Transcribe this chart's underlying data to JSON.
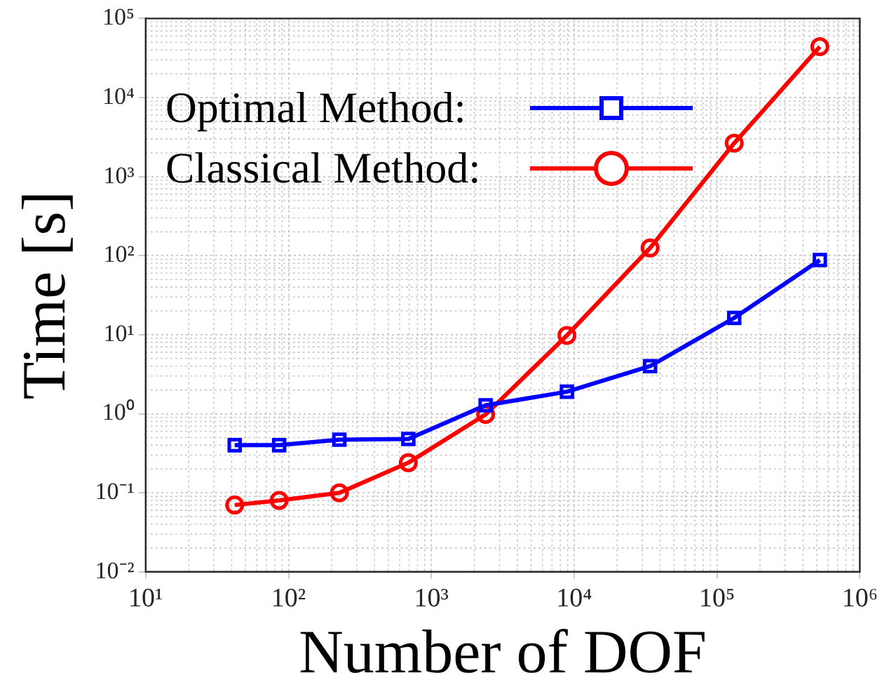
{
  "chart_data": {
    "type": "line",
    "xlabel": "Number of DOF",
    "ylabel": "Time [s]",
    "log": "xy",
    "grid": true,
    "legend": "top left",
    "line_style": "solid",
    "x": [
      42,
      86,
      227,
      690,
      2400,
      8900,
      34000,
      132000,
      525000
    ],
    "xlim": [
      10,
      1000000
    ],
    "ylim": [
      0.01,
      100000
    ],
    "xticks": [
      {
        "value": 10,
        "label": "10¹"
      },
      {
        "value": 100,
        "label": "10²"
      },
      {
        "value": 1000,
        "label": "10³"
      },
      {
        "value": 10000,
        "label": "10⁴"
      },
      {
        "value": 100000,
        "label": "10⁵"
      },
      {
        "value": 1000000,
        "label": "10⁶"
      }
    ],
    "yticks": [
      {
        "value": 0.01,
        "label": "10⁻²"
      },
      {
        "value": 0.1,
        "label": "10⁻¹"
      },
      {
        "value": 1,
        "label": "10⁰"
      },
      {
        "value": 10,
        "label": "10¹"
      },
      {
        "value": 100,
        "label": "10²"
      },
      {
        "value": 1000,
        "label": "10³"
      },
      {
        "value": 10000,
        "label": "10⁴"
      },
      {
        "value": 100000,
        "label": "10⁵"
      }
    ],
    "series": [
      {
        "name": "Optimal Method:",
        "color": "#0000ff",
        "marker": "square",
        "values": [
          0.4,
          0.4,
          0.47,
          0.48,
          1.28,
          1.9,
          4.0,
          16.3,
          88
        ]
      },
      {
        "name": "Classical Method:",
        "color": "#ff0000",
        "marker": "circle",
        "values": [
          0.07,
          0.08,
          0.1,
          0.24,
          0.98,
          9.8,
          125,
          2650,
          44000
        ]
      }
    ]
  }
}
